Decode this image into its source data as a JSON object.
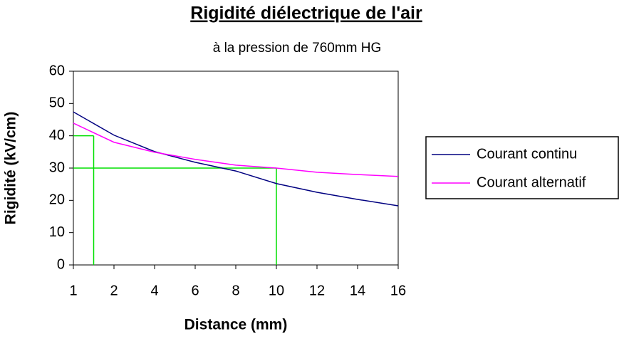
{
  "chart_data": {
    "type": "line",
    "title": "Rigidité diélectrique de l'air",
    "subtitle": "à la pression de 760mm HG",
    "x_label": "Distance (mm)",
    "y_label": "Rigidité (kV/cm)",
    "x": [
      1,
      2,
      4,
      6,
      8,
      10,
      12,
      14,
      16
    ],
    "xticks": [
      1,
      2,
      4,
      6,
      8,
      10,
      12,
      14,
      16
    ],
    "xlim": [
      1,
      16
    ],
    "ylim": [
      0,
      60
    ],
    "yticks": [
      0,
      10,
      20,
      30,
      40,
      50,
      60
    ],
    "series": [
      {
        "name": "Courant continu",
        "color": "#000080",
        "values": [
          47.4,
          40.2,
          35.1,
          31.8,
          29.1,
          25.2,
          22.5,
          20.3,
          18.3
        ]
      },
      {
        "name": "Courant alternatif",
        "color": "#ff00ff",
        "values": [
          43.9,
          38,
          34.9,
          32.7,
          30.9,
          30,
          28.7,
          28,
          27.4
        ]
      }
    ],
    "reference_lines": [
      {
        "x": 1.5,
        "y": 40,
        "color": "#00e000"
      },
      {
        "x": 10,
        "y": 30,
        "color": "#00e000"
      }
    ],
    "legend": "right"
  }
}
